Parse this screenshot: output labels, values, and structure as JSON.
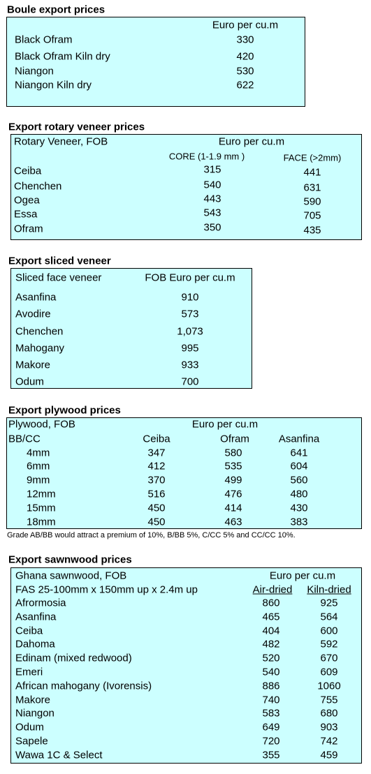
{
  "boule": {
    "title": "Boule export prices",
    "header": "Euro per cu.m",
    "rows": [
      [
        "Black Ofram",
        330
      ],
      [
        "Black Ofram  Kiln dry",
        420
      ],
      [
        "Niangon",
        530
      ],
      [
        "Niangon Kiln dry",
        622
      ]
    ]
  },
  "rotary": {
    "title": "Export rotary veneer prices",
    "header": "Rotary Veneer,  FOB",
    "unit": "Euro  per cu.m",
    "columns": [
      "CORE (1-1.9 mm )",
      "FACE (>2mm)"
    ],
    "rows": [
      [
        "Ceiba",
        315,
        441
      ],
      [
        "Chenchen",
        540,
        631
      ],
      [
        "Ogea",
        443,
        590
      ],
      [
        "Essa",
        543,
        705
      ],
      [
        "Ofram",
        350,
        435
      ]
    ]
  },
  "sliced": {
    "title": "Export sliced veneer",
    "header": "Sliced face veneer",
    "unit": "FOB Euro per cu.m",
    "rows": [
      [
        "Asanfina",
        910
      ],
      [
        "Avodire",
        573
      ],
      [
        "Chenchen",
        "1,073"
      ],
      [
        "Mahogany",
        995
      ],
      [
        "Makore",
        933
      ],
      [
        "Odum",
        700
      ]
    ]
  },
  "plywood": {
    "title": "Export plywood prices",
    "header": "Plywood, FOB",
    "unit": "Euro per cu.m",
    "subheader": "BB/CC",
    "columns": [
      "Ceiba",
      "Ofram",
      "Asanfina"
    ],
    "rows": [
      [
        "4mm",
        347,
        580,
        641
      ],
      [
        "6mm",
        412,
        535,
        604
      ],
      [
        "9mm",
        370,
        499,
        560
      ],
      [
        "12mm",
        516,
        476,
        480
      ],
      [
        "15mm",
        450,
        414,
        430
      ],
      [
        "18mm",
        450,
        463,
        383
      ]
    ],
    "note": "Grade AB/BB would attract a premium of 10%, B/BB 5%, C/CC 5% and CC/CC 10%."
  },
  "sawnwood": {
    "title": "Export sawnwood prices",
    "header": "Ghana sawnwood, FOB",
    "unit": "Euro per cu.m",
    "subheader": "FAS 25-100mm x 150mm up x 2.4m up",
    "columns": [
      "Air-dried",
      "Kiln-dried"
    ],
    "rows": [
      [
        "Afrormosia",
        860,
        925
      ],
      [
        "Asanfina",
        465,
        564
      ],
      [
        "Ceiba",
        404,
        600
      ],
      [
        "Dahoma",
        482,
        592
      ],
      [
        "Edinam (mixed redwood)",
        520,
        670
      ],
      [
        "Emeri",
        540,
        609
      ],
      [
        "African mahogany (Ivorensis)",
        886,
        1060
      ],
      [
        "Makore",
        740,
        755
      ],
      [
        "Niangon",
        583,
        680
      ],
      [
        "Odum",
        649,
        903
      ],
      [
        "Sapele",
        720,
        742
      ],
      [
        "Wawa 1C & Select",
        355,
        459
      ]
    ]
  }
}
